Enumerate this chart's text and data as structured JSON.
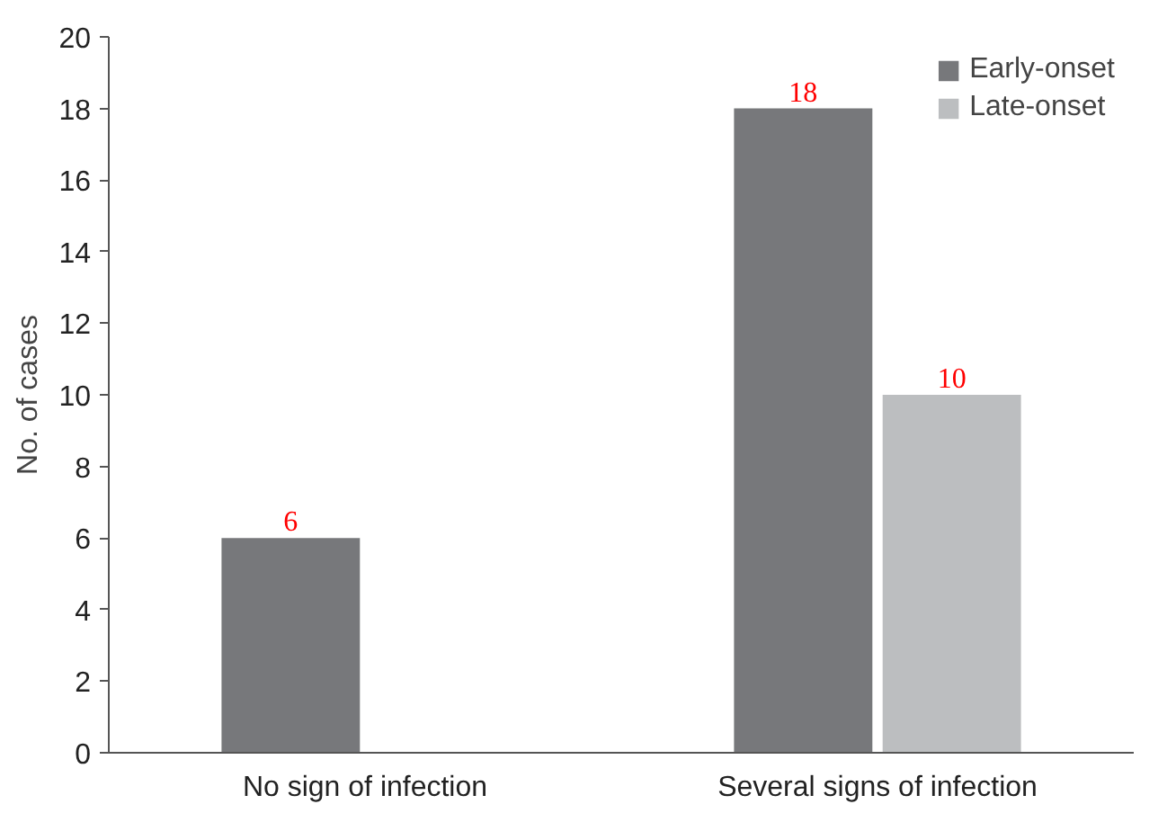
{
  "chart_data": {
    "type": "bar",
    "ylabel": "No. of cases",
    "categories": [
      "No sign of infection",
      "Several signs of infection"
    ],
    "series": [
      {
        "name": "Early-onset",
        "color": "#77787b",
        "values": [
          6,
          18
        ]
      },
      {
        "name": "Late-onset",
        "color": "#bcbec0",
        "values": [
          null,
          10
        ]
      }
    ],
    "ylim": [
      0,
      20
    ],
    "yticks": [
      0,
      2,
      4,
      6,
      8,
      10,
      12,
      14,
      16,
      18,
      20
    ],
    "data_labels": true,
    "grid": false,
    "legend": "top right"
  }
}
